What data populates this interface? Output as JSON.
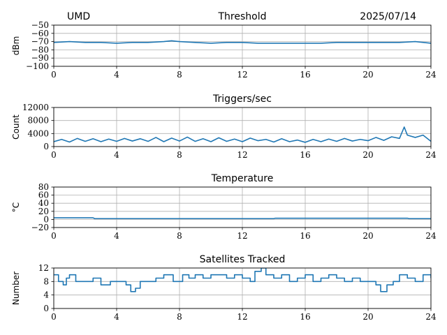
{
  "header": {
    "left": "UMD",
    "right": "2025/07/14"
  },
  "series_color": "#1f77b4",
  "chart_data": [
    {
      "type": "line",
      "title": "Threshold",
      "ylabel": "dBm",
      "xlim": [
        0,
        24
      ],
      "ylim": [
        -100,
        -50
      ],
      "xticks": [
        0,
        4,
        8,
        12,
        16,
        20,
        24
      ],
      "yticks": [
        -100,
        -90,
        -80,
        -70,
        -60,
        -50
      ],
      "grid": true,
      "series": [
        {
          "x": [
            0,
            1,
            2,
            3,
            4,
            5,
            6,
            7,
            7.5,
            8,
            9,
            10,
            11,
            12,
            13,
            14,
            15,
            16,
            17,
            18,
            19,
            20,
            21,
            22,
            23,
            24
          ],
          "values": [
            -71,
            -70,
            -71,
            -71,
            -72,
            -71,
            -71,
            -70,
            -69,
            -70,
            -71,
            -72,
            -71,
            -71,
            -72,
            -72,
            -72,
            -72,
            -72,
            -71,
            -71,
            -71,
            -71,
            -71,
            -70,
            -72
          ]
        }
      ]
    },
    {
      "type": "line",
      "title": "Triggers/sec",
      "ylabel": "Count",
      "xlim": [
        0,
        24
      ],
      "ylim": [
        0,
        12000
      ],
      "xticks": [
        0,
        4,
        8,
        12,
        16,
        20,
        24
      ],
      "yticks": [
        0,
        4000,
        8000,
        12000
      ],
      "grid": true,
      "series": [
        {
          "x": [
            0,
            0.5,
            1,
            1.5,
            2,
            2.5,
            3,
            3.5,
            4,
            4.5,
            5,
            5.5,
            6,
            6.5,
            7,
            7.5,
            8,
            8.5,
            9,
            9.5,
            10,
            10.5,
            11,
            11.5,
            12,
            12.5,
            13,
            13.5,
            14,
            14.5,
            15,
            15.5,
            16,
            16.5,
            17,
            17.5,
            18,
            18.5,
            19,
            19.5,
            20,
            20.5,
            21,
            21.5,
            22,
            22.3,
            22.5,
            23,
            23.5,
            24
          ],
          "values": [
            1500,
            2200,
            1400,
            2500,
            1600,
            2400,
            1500,
            2300,
            1600,
            2500,
            1700,
            2400,
            1600,
            2800,
            1500,
            2600,
            1700,
            2900,
            1600,
            2400,
            1500,
            2700,
            1600,
            2300,
            1500,
            2600,
            1800,
            2200,
            1400,
            2400,
            1500,
            2000,
            1300,
            2200,
            1500,
            2300,
            1600,
            2500,
            1700,
            2200,
            1800,
            2800,
            1900,
            3000,
            2500,
            6000,
            3500,
            2800,
            3500,
            1600
          ]
        }
      ]
    },
    {
      "type": "line",
      "title": "Temperature",
      "ylabel": "°C",
      "xlim": [
        0,
        24
      ],
      "ylim": [
        -20,
        80
      ],
      "xticks": [
        0,
        4,
        8,
        12,
        16,
        20,
        24
      ],
      "yticks": [
        -20,
        0,
        20,
        40,
        60,
        80
      ],
      "grid": true,
      "series": [
        {
          "x": [
            0,
            2.5,
            2.6,
            14,
            14.1,
            22.5,
            22.6,
            24
          ],
          "values": [
            4,
            4,
            2,
            2,
            3,
            3,
            2,
            2
          ]
        }
      ]
    },
    {
      "type": "line",
      "title": "Satellites Tracked",
      "ylabel": "Number",
      "xlim": [
        0,
        24
      ],
      "ylim": [
        0,
        12
      ],
      "xticks": [
        0,
        4,
        8,
        12,
        16,
        20,
        24
      ],
      "yticks": [
        0,
        4,
        8,
        12
      ],
      "grid": true,
      "series": [
        {
          "step": true,
          "x": [
            0,
            0.3,
            0.6,
            0.8,
            1.0,
            1.4,
            2.0,
            2.5,
            3.0,
            3.6,
            4.0,
            4.6,
            4.9,
            5.2,
            5.5,
            6.0,
            6.5,
            7.0,
            7.6,
            8.2,
            8.6,
            9.0,
            9.5,
            10.0,
            10.5,
            11.0,
            11.5,
            12.0,
            12.5,
            12.8,
            13.2,
            13.5,
            14.0,
            14.5,
            15.0,
            15.5,
            16.0,
            16.5,
            17.0,
            17.5,
            18.0,
            18.5,
            19.0,
            19.5,
            20.0,
            20.5,
            20.8,
            21.2,
            21.6,
            22.0,
            22.5,
            23.0,
            23.5,
            24.0
          ],
          "values": [
            10,
            8,
            7,
            9,
            10,
            8,
            8,
            9,
            7,
            8,
            8,
            7,
            5,
            6,
            8,
            8,
            9,
            10,
            8,
            10,
            9,
            10,
            9,
            10,
            10,
            9,
            10,
            9,
            8,
            11,
            12,
            10,
            9,
            10,
            8,
            9,
            10,
            8,
            9,
            10,
            9,
            8,
            9,
            8,
            8,
            7,
            5,
            7,
            8,
            10,
            9,
            8,
            10,
            9
          ]
        }
      ]
    }
  ]
}
